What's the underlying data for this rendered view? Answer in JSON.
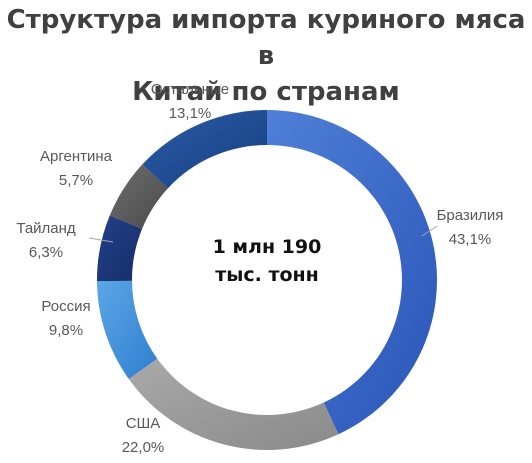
{
  "chart_data": {
    "type": "pie",
    "title_lines": [
      "Структура импорта куриного мяса в",
      "Китай по странам"
    ],
    "center_lines": [
      "1 млн 190",
      "тыс. тонн"
    ],
    "slices": [
      {
        "name": "Бразилия",
        "value": 43.1,
        "label": "43,1%",
        "color_from": "#4f7fd8",
        "color_to": "#2a55b8"
      },
      {
        "name": "США",
        "value": 22.0,
        "label": "22,0%",
        "color_from": "#a9a9a9",
        "color_to": "#8a8a8a"
      },
      {
        "name": "Россия",
        "value": 9.8,
        "label": "9,8%",
        "color_from": "#5ba6e6",
        "color_to": "#2f7fd0"
      },
      {
        "name": "Тайланд",
        "value": 6.3,
        "label": "6,3%",
        "color_from": "#23408a",
        "color_to": "#162d66"
      },
      {
        "name": "Аргентина",
        "value": 5.7,
        "label": "5,7%",
        "color_from": "#6e6e6e",
        "color_to": "#4a4a4a"
      },
      {
        "name": "Остальные",
        "value": 13.1,
        "label": "13,1%",
        "color_from": "#2a5ba8",
        "color_to": "#173f80"
      }
    ]
  }
}
